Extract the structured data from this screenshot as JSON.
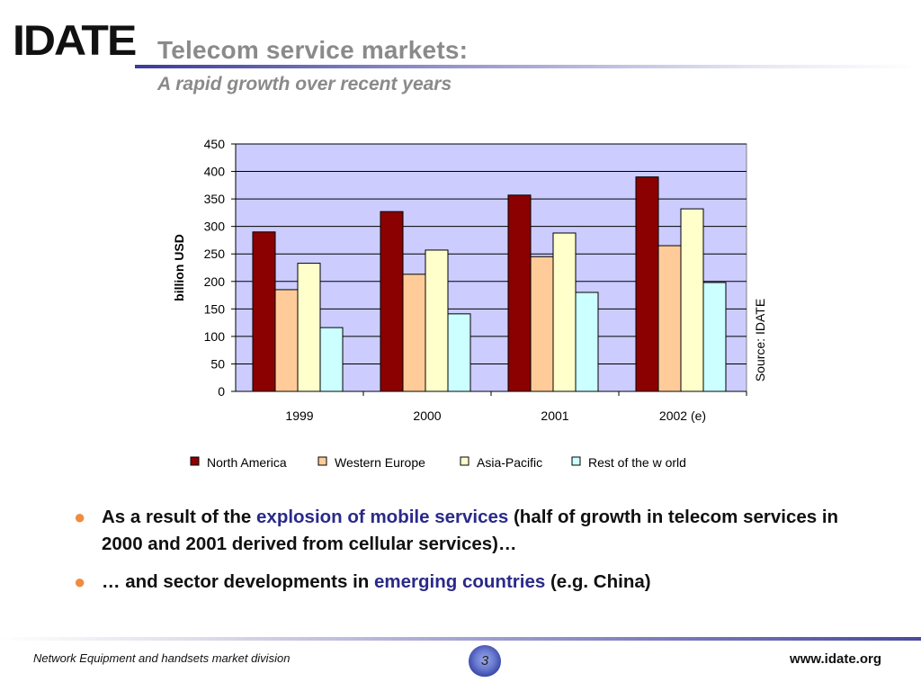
{
  "header": {
    "logo": "IDATE",
    "title": "Telecom service markets:",
    "subtitle": "A rapid growth over recent years"
  },
  "chart_data": {
    "type": "bar",
    "categories": [
      "1999",
      "2000",
      "2001",
      "2002 (e)"
    ],
    "series": [
      {
        "name": "North America",
        "color": "#8b0000",
        "values": [
          290,
          327,
          357,
          390
        ]
      },
      {
        "name": "Western Europe",
        "color": "#ffcc99",
        "values": [
          185,
          213,
          245,
          265
        ]
      },
      {
        "name": "Asia-Pacific",
        "color": "#ffffcc",
        "values": [
          233,
          257,
          288,
          332
        ]
      },
      {
        "name": "Rest of the w orld",
        "color": "#ccffff",
        "values": [
          116,
          141,
          180,
          198
        ]
      }
    ],
    "ylabel": "billion USD",
    "ylim": [
      0,
      450
    ],
    "yticks": [
      "0",
      "50",
      "100",
      "150",
      "200",
      "250",
      "300",
      "350",
      "400",
      "450"
    ],
    "source_note": "Source: IDATE",
    "plot_background": "#ccccff",
    "grid": true,
    "legend_position": "bottom"
  },
  "bullets": [
    {
      "before": "As a result of the ",
      "highlight": "explosion of mobile services",
      "after": " (half of growth in telecom services in 2000 and 2001 derived from cellular services)…"
    },
    {
      "before": "… and sector developments in ",
      "highlight": "emerging countries",
      "after": " (e.g. China)"
    }
  ],
  "footer": {
    "division": "Network Equipment and handsets market division",
    "page_number": "3",
    "website": "www.idate.org"
  }
}
